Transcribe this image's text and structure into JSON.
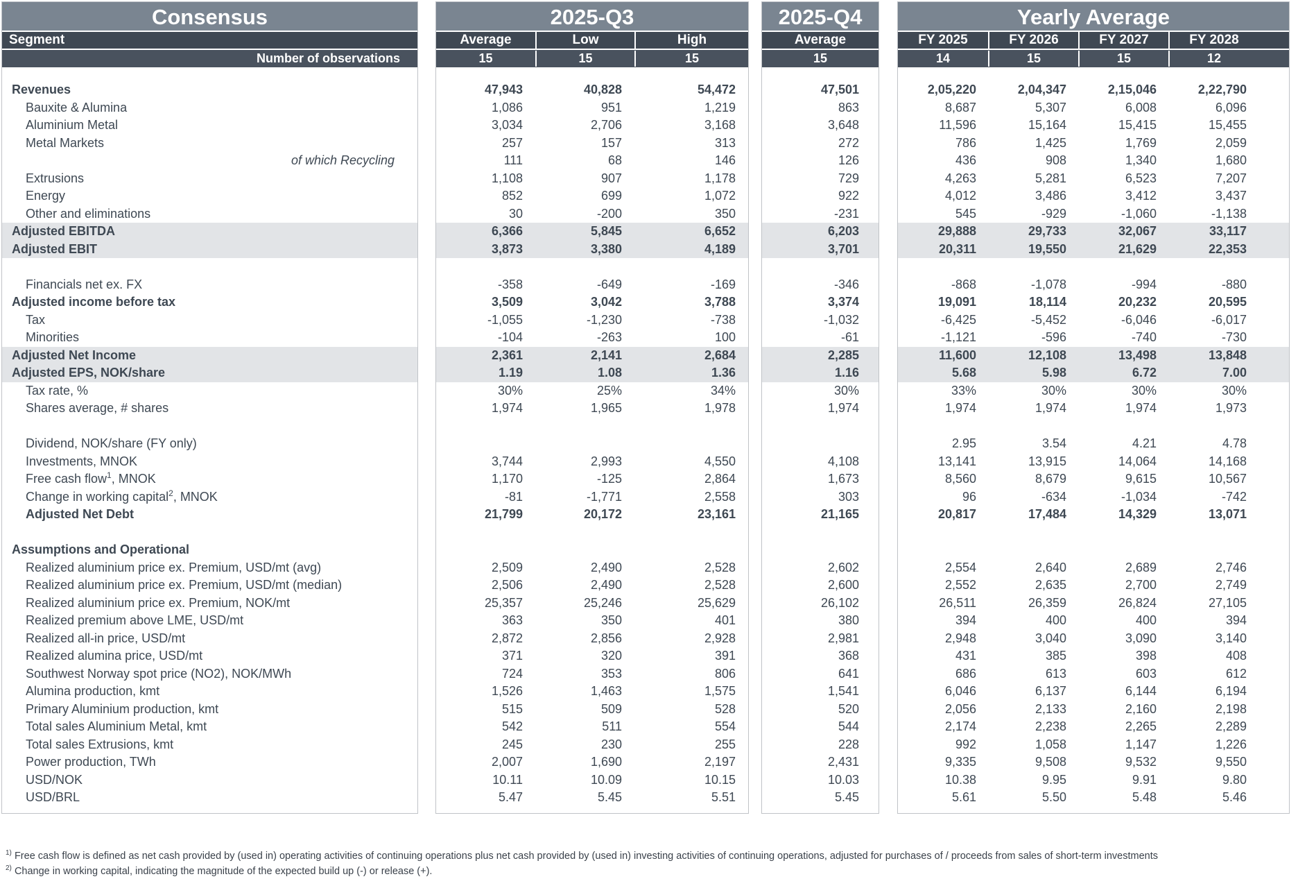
{
  "colors": {
    "title_band": "#7a8591",
    "header_band": "#3f4853",
    "observations_band": "#49525e",
    "highlight_row": "#e2e4e7",
    "text": "#3e4853"
  },
  "panels": {
    "consensus": {
      "title": "Consensus",
      "segment_label": "Segment",
      "obs_label": "Number of observations"
    },
    "q3": {
      "title": "2025-Q3",
      "columns": [
        "Average",
        "Low",
        "High"
      ],
      "observations": [
        "15",
        "15",
        "15"
      ]
    },
    "q4": {
      "title": "2025-Q4",
      "columns": [
        "Average"
      ],
      "observations": [
        "15"
      ]
    },
    "yearly": {
      "title": "Yearly Average",
      "columns": [
        "FY 2025",
        "FY 2026",
        "FY 2027",
        "FY 2028"
      ],
      "observations": [
        "14",
        "15",
        "15",
        "12"
      ]
    }
  },
  "rows": [
    {
      "label": "Revenues",
      "style": "b0",
      "q3": [
        "47,943",
        "40,828",
        "54,472"
      ],
      "q4": [
        "47,501"
      ],
      "fy": [
        "2,05,220",
        "2,04,347",
        "2,15,046",
        "2,22,790"
      ]
    },
    {
      "label": "Bauxite & Alumina",
      "style": "s",
      "q3": [
        "1,086",
        "951",
        "1,219"
      ],
      "q4": [
        "863"
      ],
      "fy": [
        "8,687",
        "5,307",
        "6,008",
        "6,096"
      ]
    },
    {
      "label": "Aluminium Metal",
      "style": "s",
      "q3": [
        "3,034",
        "2,706",
        "3,168"
      ],
      "q4": [
        "3,648"
      ],
      "fy": [
        "11,596",
        "15,164",
        "15,415",
        "15,455"
      ]
    },
    {
      "label": "Metal Markets",
      "style": "s",
      "q3": [
        "257",
        "157",
        "313"
      ],
      "q4": [
        "272"
      ],
      "fy": [
        "786",
        "1,425",
        "1,769",
        "2,059"
      ]
    },
    {
      "label": "of which Recycling",
      "style": "ri",
      "q3": [
        "111",
        "68",
        "146"
      ],
      "q4": [
        "126"
      ],
      "fy": [
        "436",
        "908",
        "1,340",
        "1,680"
      ]
    },
    {
      "label": "Extrusions",
      "style": "s",
      "q3": [
        "1,108",
        "907",
        "1,178"
      ],
      "q4": [
        "729"
      ],
      "fy": [
        "4,263",
        "5,281",
        "6,523",
        "7,207"
      ]
    },
    {
      "label": "Energy",
      "style": "s",
      "q3": [
        "852",
        "699",
        "1,072"
      ],
      "q4": [
        "922"
      ],
      "fy": [
        "4,012",
        "3,486",
        "3,412",
        "3,437"
      ]
    },
    {
      "label": "Other and eliminations",
      "style": "s",
      "q3": [
        "30",
        "-200",
        "350"
      ],
      "q4": [
        "-231"
      ],
      "fy": [
        "545",
        "-929",
        "-1,060",
        "-1,138"
      ]
    },
    {
      "label": "Adjusted EBITDA",
      "style": "hl",
      "q3": [
        "6,366",
        "5,845",
        "6,652"
      ],
      "q4": [
        "6,203"
      ],
      "fy": [
        "29,888",
        "29,733",
        "32,067",
        "33,117"
      ]
    },
    {
      "label": "Adjusted EBIT",
      "style": "hl",
      "q3": [
        "3,873",
        "3,380",
        "4,189"
      ],
      "q4": [
        "3,701"
      ],
      "fy": [
        "20,311",
        "19,550",
        "21,629",
        "22,353"
      ]
    },
    {
      "label": "",
      "style": "x",
      "q3": [],
      "q4": [],
      "fy": []
    },
    {
      "label": "Financials net ex. FX",
      "style": "s",
      "q3": [
        "-358",
        "-649",
        "-169"
      ],
      "q4": [
        "-346"
      ],
      "fy": [
        "-868",
        "-1,078",
        "-994",
        "-880"
      ]
    },
    {
      "label": "Adjusted income before tax",
      "style": "b0",
      "q3": [
        "3,509",
        "3,042",
        "3,788"
      ],
      "q4": [
        "3,374"
      ],
      "fy": [
        "19,091",
        "18,114",
        "20,232",
        "20,595"
      ]
    },
    {
      "label": "Tax",
      "style": "s",
      "q3": [
        "-1,055",
        "-1,230",
        "-738"
      ],
      "q4": [
        "-1,032"
      ],
      "fy": [
        "-6,425",
        "-5,452",
        "-6,046",
        "-6,017"
      ]
    },
    {
      "label": "Minorities",
      "style": "s",
      "q3": [
        "-104",
        "-263",
        "100"
      ],
      "q4": [
        "-61"
      ],
      "fy": [
        "-1,121",
        "-596",
        "-740",
        "-730"
      ]
    },
    {
      "label": "Adjusted Net Income",
      "style": "hl",
      "q3": [
        "2,361",
        "2,141",
        "2,684"
      ],
      "q4": [
        "2,285"
      ],
      "fy": [
        "11,600",
        "12,108",
        "13,498",
        "13,848"
      ]
    },
    {
      "label": "Adjusted EPS, NOK/share",
      "style": "hl",
      "q3": [
        "1.19",
        "1.08",
        "1.36"
      ],
      "q4": [
        "1.16"
      ],
      "fy": [
        "5.68",
        "5.98",
        "6.72",
        "7.00"
      ]
    },
    {
      "label": "Tax rate, %",
      "style": "s",
      "q3": [
        "30%",
        "25%",
        "34%"
      ],
      "q4": [
        "30%"
      ],
      "fy": [
        "33%",
        "30%",
        "30%",
        "30%"
      ]
    },
    {
      "label": "Shares average, # shares",
      "style": "s",
      "q3": [
        "1,974",
        "1,965",
        "1,978"
      ],
      "q4": [
        "1,974"
      ],
      "fy": [
        "1,974",
        "1,974",
        "1,974",
        "1,973"
      ]
    },
    {
      "label": "",
      "style": "x",
      "q3": [],
      "q4": [],
      "fy": []
    },
    {
      "label": "Dividend, NOK/share (FY only)",
      "style": "s",
      "q3": [
        "",
        "",
        ""
      ],
      "q4": [
        ""
      ],
      "fy": [
        "2.95",
        "3.54",
        "4.21",
        "4.78"
      ]
    },
    {
      "label": "Investments, MNOK",
      "style": "s",
      "q3": [
        "3,744",
        "2,993",
        "4,550"
      ],
      "q4": [
        "4,108"
      ],
      "fy": [
        "13,141",
        "13,915",
        "14,064",
        "14,168"
      ]
    },
    {
      "label": "Free cash flow",
      "sup": "1",
      "label2": ", MNOK",
      "style": "s",
      "q3": [
        "1,170",
        "-125",
        "2,864"
      ],
      "q4": [
        "1,673"
      ],
      "fy": [
        "8,560",
        "8,679",
        "9,615",
        "10,567"
      ]
    },
    {
      "label": "Change in working capital",
      "sup": "2",
      "label2": ", MNOK",
      "style": "s",
      "q3": [
        "-81",
        "-1,771",
        "2,558"
      ],
      "q4": [
        "303"
      ],
      "fy": [
        "96",
        "-634",
        "-1,034",
        "-742"
      ]
    },
    {
      "label": "Adjusted Net Debt",
      "style": "bs",
      "q3": [
        "21,799",
        "20,172",
        "23,161"
      ],
      "q4": [
        "21,165"
      ],
      "fy": [
        "20,817",
        "17,484",
        "14,329",
        "13,071"
      ]
    },
    {
      "label": "",
      "style": "x",
      "q3": [],
      "q4": [],
      "fy": []
    },
    {
      "label": "Assumptions and Operational",
      "style": "sec",
      "q3": [],
      "q4": [],
      "fy": []
    },
    {
      "label": "Realized aluminium price ex. Premium, USD/mt (avg)",
      "style": "s",
      "q3": [
        "2,509",
        "2,490",
        "2,528"
      ],
      "q4": [
        "2,602"
      ],
      "fy": [
        "2,554",
        "2,640",
        "2,689",
        "2,746"
      ]
    },
    {
      "label": "Realized aluminium price ex. Premium, USD/mt (median)",
      "style": "s",
      "q3": [
        "2,506",
        "2,490",
        "2,528"
      ],
      "q4": [
        "2,600"
      ],
      "fy": [
        "2,552",
        "2,635",
        "2,700",
        "2,749"
      ]
    },
    {
      "label": "Realized aluminium price ex. Premium, NOK/mt",
      "style": "s",
      "q3": [
        "25,357",
        "25,246",
        "25,629"
      ],
      "q4": [
        "26,102"
      ],
      "fy": [
        "26,511",
        "26,359",
        "26,824",
        "27,105"
      ]
    },
    {
      "label": "Realized premium above LME, USD/mt",
      "style": "s",
      "q3": [
        "363",
        "350",
        "401"
      ],
      "q4": [
        "380"
      ],
      "fy": [
        "394",
        "400",
        "400",
        "394"
      ]
    },
    {
      "label": "Realized all-in price, USD/mt",
      "style": "s",
      "q3": [
        "2,872",
        "2,856",
        "2,928"
      ],
      "q4": [
        "2,981"
      ],
      "fy": [
        "2,948",
        "3,040",
        "3,090",
        "3,140"
      ]
    },
    {
      "label": "Realized alumina price, USD/mt",
      "style": "s",
      "q3": [
        "371",
        "320",
        "391"
      ],
      "q4": [
        "368"
      ],
      "fy": [
        "431",
        "385",
        "398",
        "408"
      ]
    },
    {
      "label": "Southwest Norway spot price (NO2), NOK/MWh",
      "style": "s",
      "q3": [
        "724",
        "353",
        "806"
      ],
      "q4": [
        "641"
      ],
      "fy": [
        "686",
        "613",
        "603",
        "612"
      ]
    },
    {
      "label": "Alumina production, kmt",
      "style": "s",
      "q3": [
        "1,526",
        "1,463",
        "1,575"
      ],
      "q4": [
        "1,541"
      ],
      "fy": [
        "6,046",
        "6,137",
        "6,144",
        "6,194"
      ]
    },
    {
      "label": "Primary Aluminium production, kmt",
      "style": "s",
      "q3": [
        "515",
        "509",
        "528"
      ],
      "q4": [
        "520"
      ],
      "fy": [
        "2,056",
        "2,133",
        "2,160",
        "2,198"
      ]
    },
    {
      "label": "Total sales Aluminium Metal, kmt",
      "style": "s",
      "q3": [
        "542",
        "511",
        "554"
      ],
      "q4": [
        "544"
      ],
      "fy": [
        "2,174",
        "2,238",
        "2,265",
        "2,289"
      ]
    },
    {
      "label": "Total sales Extrusions, kmt",
      "style": "s",
      "q3": [
        "245",
        "230",
        "255"
      ],
      "q4": [
        "228"
      ],
      "fy": [
        "992",
        "1,058",
        "1,147",
        "1,226"
      ]
    },
    {
      "label": "Power production, TWh",
      "style": "s",
      "q3": [
        "2,007",
        "1,690",
        "2,197"
      ],
      "q4": [
        "2,431"
      ],
      "fy": [
        "9,335",
        "9,508",
        "9,532",
        "9,550"
      ]
    },
    {
      "label": "USD/NOK",
      "style": "s",
      "q3": [
        "10.11",
        "10.09",
        "10.15"
      ],
      "q4": [
        "10.03"
      ],
      "fy": [
        "10.38",
        "9.95",
        "9.91",
        "9.80"
      ]
    },
    {
      "label": "USD/BRL",
      "style": "s",
      "q3": [
        "5.47",
        "5.45",
        "5.51"
      ],
      "q4": [
        "5.45"
      ],
      "fy": [
        "5.61",
        "5.50",
        "5.48",
        "5.46"
      ]
    }
  ],
  "footnotes": [
    {
      "sup": "1)",
      "text": "Free cash flow is defined as net cash provided by (used in) operating activities of continuing operations plus net cash provided by (used in) investing activities of continuing operations, adjusted for purchases of / proceeds from sales of short-term investments"
    },
    {
      "sup": "2)",
      "text": "Change in working capital, indicating the magnitude of the expected build up (-) or release (+)."
    }
  ]
}
